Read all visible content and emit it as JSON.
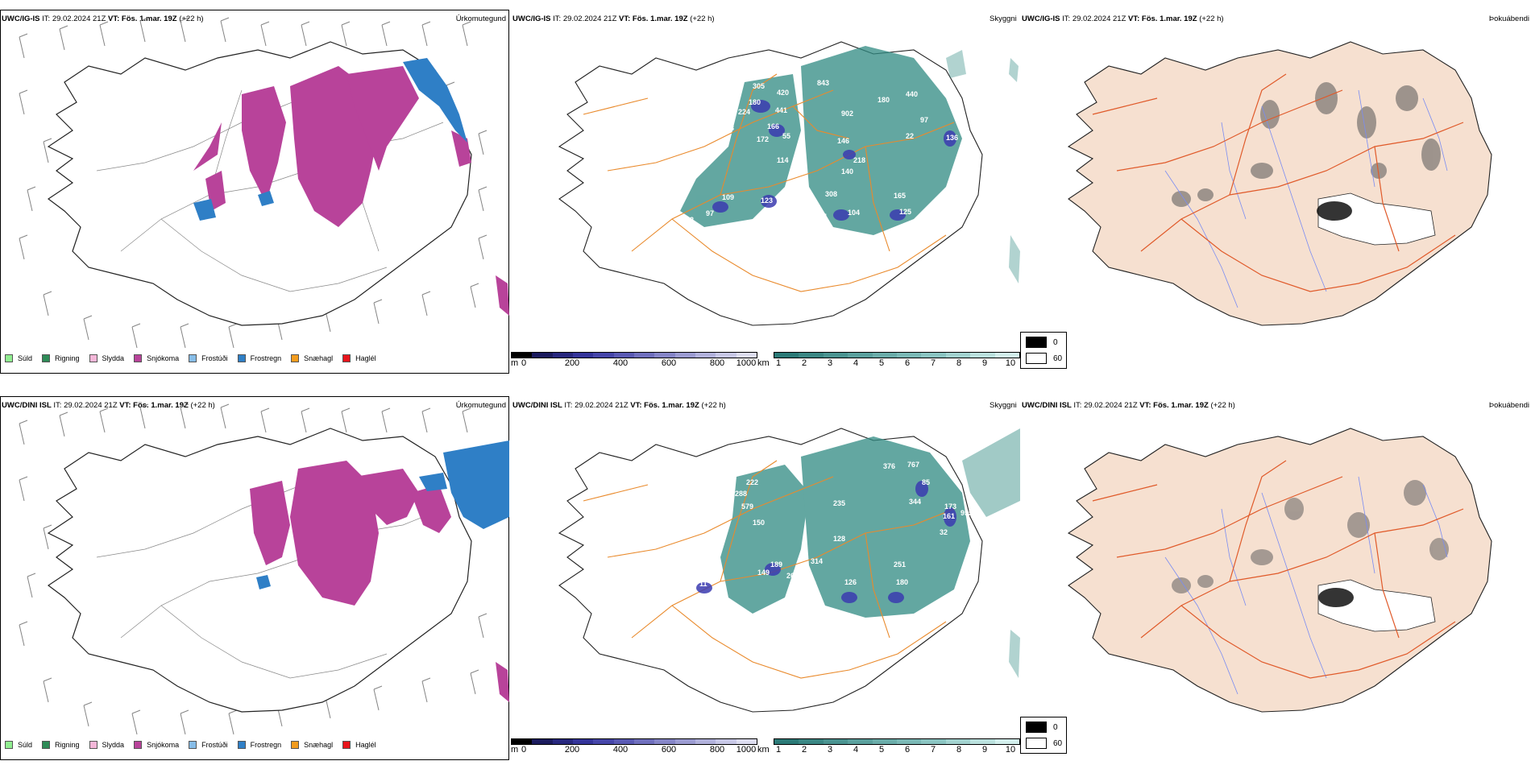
{
  "rows": [
    {
      "model": "UWC/IG-IS",
      "it_label": "IT:",
      "it_value": "29.02.2024 21Z",
      "vt_label": "VT:",
      "vt_value": "Fös. 1.mar. 19Z",
      "lead": "(+22 h)",
      "peak_labels": [
        "305",
        "420",
        "843",
        "180",
        "440",
        "180",
        "224",
        "441",
        "902",
        "97",
        "198",
        "166",
        "55",
        "172",
        "146",
        "22",
        "136",
        "218",
        "114",
        "140",
        "308",
        "109",
        "123",
        "180",
        "165",
        "97",
        "161",
        "104",
        "125",
        "2"
      ]
    },
    {
      "model": "UWC/DINI ISL",
      "it_label": "IT:",
      "it_value": "29.02.2024 21Z",
      "vt_label": "VT:",
      "vt_value": "Fös. 1.mar. 19Z",
      "lead": "(+22 h)",
      "peak_labels": [
        "376",
        "767",
        "222",
        "288",
        "85",
        "579",
        "235",
        "344",
        "173",
        "161",
        "955",
        "150",
        "32",
        "128",
        "189",
        "314",
        "149",
        "269",
        "251",
        "262",
        "126",
        "180",
        "11"
      ]
    }
  ],
  "panels": {
    "precip": {
      "title": "Úrkomutegund"
    },
    "visibility": {
      "title": "Skyggni"
    },
    "fog": {
      "title": "Þokuábendi"
    }
  },
  "precip_legend": [
    {
      "label": "Súld",
      "color": "#90ee90"
    },
    {
      "label": "Rigning",
      "color": "#2e8b57"
    },
    {
      "label": "Slydda",
      "color": "#f4b6d8"
    },
    {
      "label": "Snjókoma",
      "color": "#b8439a"
    },
    {
      "label": "Frostúði",
      "color": "#87bde8"
    },
    {
      "label": "Frostregn",
      "color": "#2f7fc6"
    },
    {
      "label": "Snæhagl",
      "color": "#f39c1e"
    },
    {
      "label": "Haglél",
      "color": "#e8141b"
    }
  ],
  "height_bar": {
    "unit": "m",
    "ticks": [
      "0",
      "200",
      "400",
      "600",
      "800",
      "1000"
    ],
    "colors": [
      "#000000",
      "#1b1b5e",
      "#27277e",
      "#34349a",
      "#4646aa",
      "#5a5ab4",
      "#7070be",
      "#8686c8",
      "#9c9cd2",
      "#b2b2dc",
      "#c8c8e6",
      "#dedef0"
    ]
  },
  "visibility_bar": {
    "unit": "km",
    "ticks": [
      "1",
      "2",
      "3",
      "4",
      "5",
      "6",
      "7",
      "8",
      "9",
      "10"
    ],
    "colors": [
      "#2b7a77",
      "#3b8784",
      "#4b9491",
      "#5ba19e",
      "#6badaa",
      "#7bb9b6",
      "#8bc5c2",
      "#a3d3d0",
      "#bbe1de",
      "#d3efec"
    ]
  },
  "fog_key": [
    {
      "label": "0",
      "color": "#000000"
    },
    {
      "label": "60",
      "color": "#ffffff"
    }
  ],
  "colors": {
    "snow": "#b8439a",
    "freezing_rain": "#2f7fc6",
    "vis_teal": "#2f8a82",
    "peak_purple": "#3b3bb0",
    "roads": "#e98a2c",
    "land_fog": "#f6e0d0",
    "rivers": "#7a8cf2",
    "fog_roads": "#e05a2a"
  }
}
